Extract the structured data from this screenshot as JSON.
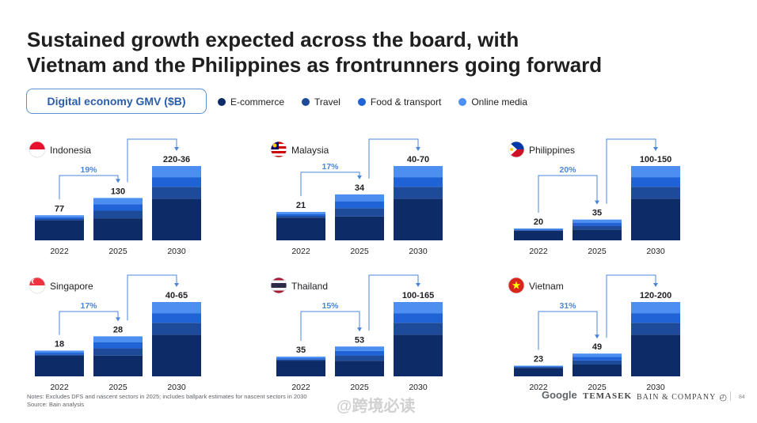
{
  "title_line1": "Sustained growth expected across the board, with",
  "title_line2": "Vietnam and the Philippines as frontrunners going forward",
  "gmv_label": "Digital economy GMV ($B)",
  "legend": [
    {
      "label": "E-commerce",
      "color": "#0d2b66"
    },
    {
      "label": "Travel",
      "color": "#1e4a9a"
    },
    {
      "label": "Food & transport",
      "color": "#1f63d6"
    },
    {
      "label": "Online media",
      "color": "#4c8ff0"
    }
  ],
  "chart_data": [
    {
      "type": "bar",
      "country": "Indonesia",
      "flag": "indonesia",
      "categories": [
        "2022",
        "2025",
        "2030"
      ],
      "value_labels": [
        "77",
        "130",
        "220-36"
      ],
      "values": [
        77,
        130,
        228
      ],
      "growth": "19%"
    },
    {
      "type": "bar",
      "country": "Malaysia",
      "flag": "malaysia",
      "categories": [
        "2022",
        "2025",
        "2030"
      ],
      "value_labels": [
        "21",
        "34",
        "40-70"
      ],
      "values": [
        21,
        34,
        55
      ],
      "growth": "17%"
    },
    {
      "type": "bar",
      "country": "Philippines",
      "flag": "philippines",
      "categories": [
        "2022",
        "2025",
        "2030"
      ],
      "value_labels": [
        "20",
        "35",
        "100-150"
      ],
      "values": [
        20,
        35,
        125
      ],
      "growth": "20%"
    },
    {
      "type": "bar",
      "country": "Singapore",
      "flag": "singapore",
      "categories": [
        "2022",
        "2025",
        "2030"
      ],
      "value_labels": [
        "18",
        "28",
        "40-65"
      ],
      "values": [
        18,
        28,
        52
      ],
      "growth": "17%"
    },
    {
      "type": "bar",
      "country": "Thailand",
      "flag": "thailand",
      "categories": [
        "2022",
        "2025",
        "2030"
      ],
      "value_labels": [
        "35",
        "53",
        "100-165"
      ],
      "values": [
        35,
        53,
        132
      ],
      "growth": "15%"
    },
    {
      "type": "bar",
      "country": "Vietnam",
      "flag": "vietnam",
      "categories": [
        "2022",
        "2025",
        "2030"
      ],
      "value_labels": [
        "23",
        "49",
        "120-200"
      ],
      "values": [
        23,
        49,
        160
      ],
      "growth": "31%"
    }
  ],
  "notes_line1": "Notes: Excludes DFS and nascent sectors in 2025; includes ballpark estimates for nascent sectors in 2030",
  "notes_line2": "Source: Bain analysis",
  "footer": {
    "google": "Google",
    "temasek": "TEMASEK",
    "bain": "BAIN & COMPANY",
    "page": "84"
  },
  "watermark": "@跨境必读"
}
